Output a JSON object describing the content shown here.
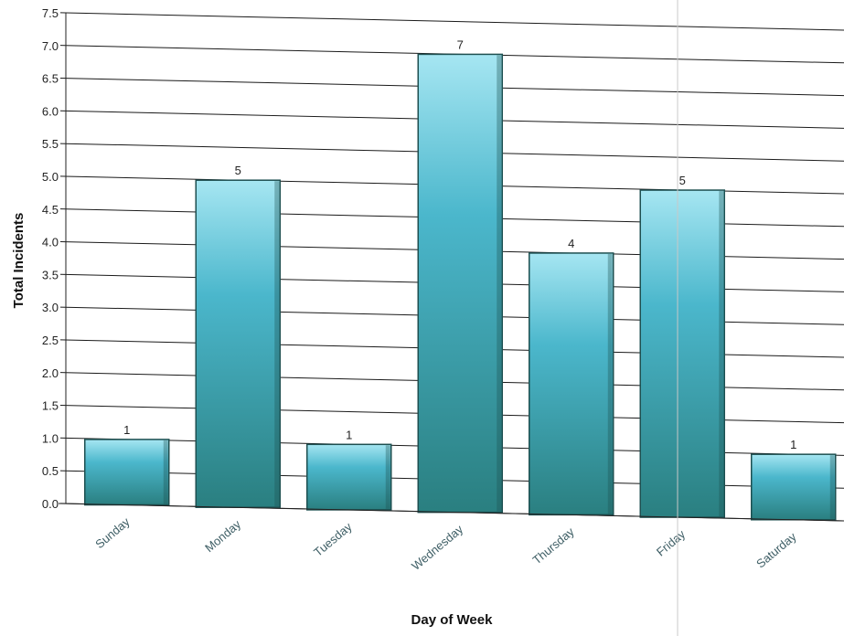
{
  "chart_data": {
    "type": "bar",
    "title": "",
    "xlabel": "Day of Week",
    "ylabel": "Total Incidents",
    "categories": [
      "Sunday",
      "Monday",
      "Tuesday",
      "Wednesday",
      "Thursday",
      "Friday",
      "Saturday"
    ],
    "values": [
      1,
      5,
      1,
      7,
      4,
      5,
      1
    ],
    "value_labels": [
      "1",
      "5",
      "1",
      "7",
      "4",
      "5",
      "1"
    ],
    "ylim": [
      0,
      7.5
    ],
    "yticks": [
      "0.0",
      "0.5",
      "1.0",
      "1.5",
      "2.0",
      "2.5",
      "3.0",
      "3.5",
      "4.0",
      "4.5",
      "5.0",
      "5.5",
      "6.0",
      "6.5",
      "7.0",
      "7.5"
    ],
    "grid": true,
    "legend": "none",
    "colors": {
      "bar_light": "#a6e6f2",
      "bar_mid": "#4bb7cc",
      "bar_dark": "#2a7f80",
      "bar_edge": "#1d4f50",
      "category_text": "#3f5f66",
      "grid": "#1a1a1a"
    }
  }
}
